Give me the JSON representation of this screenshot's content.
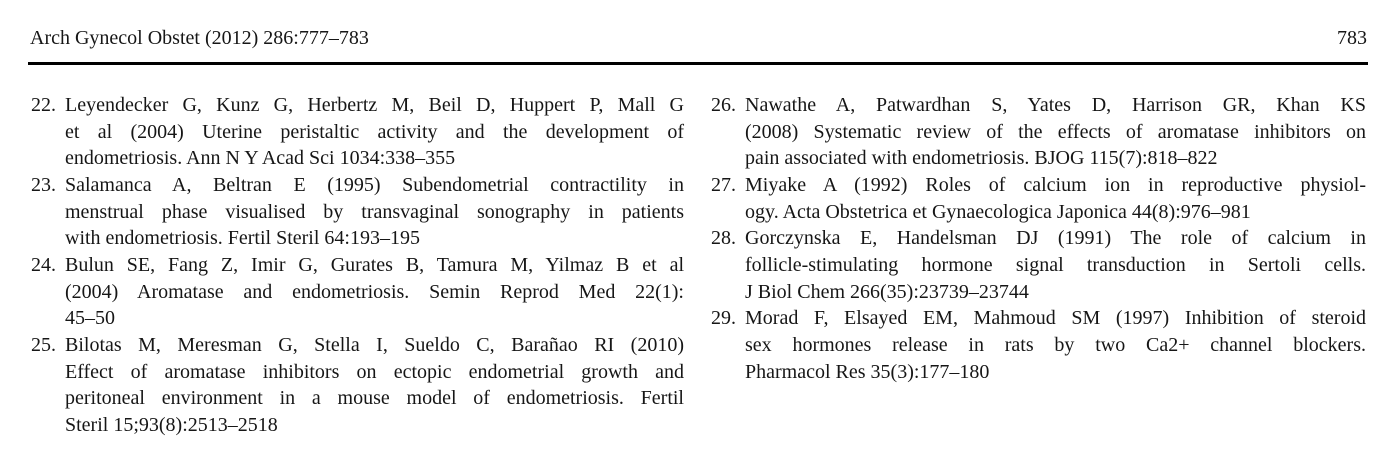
{
  "page": {
    "background": "#ffffff",
    "text_color": "#161616",
    "rule_color": "#000000"
  },
  "header": {
    "journal_citation": "Arch Gynecol Obstet (2012) 286:777–783",
    "page_number": "783"
  },
  "references": {
    "left_column": [
      {
        "number": "22.",
        "lines": [
          "Leyendecker G, Kunz G, Herbertz M, Beil D, Huppert P, Mall G",
          "et al (2004) Uterine peristaltic activity and the development of",
          "endometriosis. Ann N Y Acad Sci 1034:338–355"
        ]
      },
      {
        "number": "23.",
        "lines": [
          "Salamanca A, Beltran E (1995) Subendometrial contractility in",
          "menstrual phase visualised by transvaginal sonography in patients",
          "with endometriosis. Fertil Steril 64:193–195"
        ]
      },
      {
        "number": "24.",
        "lines": [
          "Bulun SE, Fang Z, Imir G, Gurates B, Tamura M, Yilmaz B et al",
          "(2004) Aromatase and endometriosis. Semin Reprod Med 22(1):",
          "45–50"
        ]
      },
      {
        "number": "25.",
        "lines": [
          "Bilotas M, Meresman G, Stella I, Sueldo C, Barañao RI (2010)",
          "Effect of aromatase inhibitors on ectopic endometrial growth and",
          "peritoneal environment in a mouse model of endometriosis. Fertil",
          "Steril 15;93(8):2513–2518"
        ]
      }
    ],
    "right_column": [
      {
        "number": "26.",
        "lines": [
          "Nawathe A, Patwardhan S, Yates D, Harrison GR, Khan KS",
          "(2008) Systematic review of the effects of aromatase inhibitors on",
          "pain associated with endometriosis. BJOG 115(7):818–822"
        ]
      },
      {
        "number": "27.",
        "lines": [
          "Miyake A (1992) Roles of calcium ion in reproductive physiol-",
          "ogy. Acta Obstetrica et Gynaecologica Japonica 44(8):976–981"
        ]
      },
      {
        "number": "28.",
        "lines": [
          "Gorczynska E, Handelsman DJ (1991) The role of calcium in",
          "follicle-stimulating hormone signal transduction in Sertoli cells.",
          "J Biol Chem 266(35):23739–23744"
        ]
      },
      {
        "number": "29.",
        "lines": [
          "Morad F, Elsayed EM, Mahmoud SM (1997) Inhibition of steroid",
          "sex hormones release in rats by two Ca2+ channel blockers.",
          "Pharmacol Res 35(3):177–180"
        ]
      }
    ]
  }
}
